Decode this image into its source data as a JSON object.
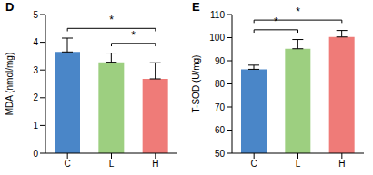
{
  "chart_data": [
    {
      "type": "bar",
      "title": "D",
      "y_label": "MDA (nmol/mg)",
      "categories": [
        "C",
        "L",
        "H"
      ],
      "values": [
        3.65,
        3.28,
        2.68
      ],
      "errors": [
        0.5,
        0.33,
        0.58
      ],
      "colors": [
        "#4a86c8",
        "#9dcf80",
        "#ef7b78"
      ],
      "ylim": [
        0,
        5
      ],
      "yticks": [
        0,
        1,
        2,
        3,
        4,
        5
      ],
      "grid": false,
      "annotations": [
        {
          "from": "L",
          "to": "H",
          "text": "*"
        },
        {
          "from": "C",
          "to": "H",
          "text": "*"
        }
      ]
    },
    {
      "type": "bar",
      "title": "E",
      "y_label": "T-SOD (U/mg)",
      "categories": [
        "C",
        "L",
        "H"
      ],
      "values": [
        86.3,
        95.2,
        100.3
      ],
      "errors": [
        1.8,
        4.0,
        2.8
      ],
      "colors": [
        "#4a86c8",
        "#9dcf80",
        "#ef7b78"
      ],
      "ylim": [
        50,
        110
      ],
      "yticks": [
        50,
        60,
        70,
        80,
        90,
        100,
        110
      ],
      "grid": false,
      "annotations": [
        {
          "from": "C",
          "to": "L",
          "text": "*"
        },
        {
          "from": "C",
          "to": "H",
          "text": "*"
        }
      ]
    }
  ]
}
